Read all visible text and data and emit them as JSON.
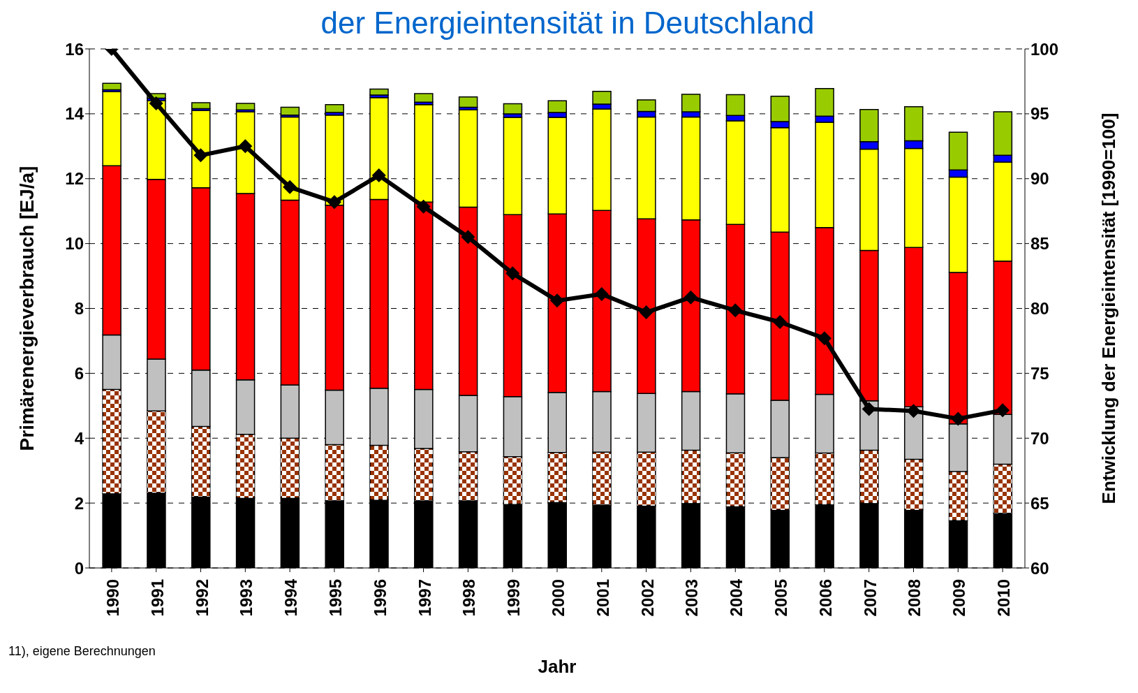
{
  "chart_data": {
    "type": "bar",
    "stacked": true,
    "title": "der Energieintensität in Deutschland",
    "xlabel": "Jahr",
    "ylabel": "Primärenergieverbrauch [EJ/a]",
    "y2label": "Entwicklung der Energieintensität [1990=100]",
    "annotations": [
      "11), eigene Berechnungen"
    ],
    "categories": [
      "1990",
      "1991",
      "1992",
      "1993",
      "1994",
      "1995",
      "1996",
      "1997",
      "1998",
      "1999",
      "2000",
      "2001",
      "2002",
      "2003",
      "2004",
      "2005",
      "2006",
      "2007",
      "2008",
      "2009",
      "2010"
    ],
    "series": [
      {
        "color": "#000000",
        "values": [
          2.3,
          2.32,
          2.2,
          2.16,
          2.16,
          2.08,
          2.1,
          2.08,
          2.08,
          1.97,
          2.03,
          1.95,
          1.92,
          2.0,
          1.9,
          1.79,
          1.96,
          2.0,
          1.79,
          1.47,
          1.69
        ]
      },
      {
        "color": "#993300",
        "values": [
          3.2,
          2.52,
          2.16,
          1.96,
          1.84,
          1.72,
          1.68,
          1.6,
          1.5,
          1.46,
          1.53,
          1.62,
          1.65,
          1.63,
          1.65,
          1.61,
          1.58,
          1.63,
          1.56,
          1.5,
          1.51
        ]
      },
      {
        "color": "#c0c0c0",
        "values": [
          1.68,
          1.6,
          1.74,
          1.68,
          1.64,
          1.68,
          1.76,
          1.82,
          1.74,
          1.85,
          1.85,
          1.87,
          1.81,
          1.81,
          1.82,
          1.77,
          1.81,
          1.52,
          1.62,
          1.47,
          1.53
        ]
      },
      {
        "color": "#ff0000",
        "values": [
          5.22,
          5.54,
          5.62,
          5.74,
          5.7,
          5.7,
          5.82,
          5.78,
          5.8,
          5.61,
          5.5,
          5.58,
          5.38,
          5.29,
          5.22,
          5.18,
          5.14,
          4.64,
          4.91,
          4.67,
          4.73
        ]
      },
      {
        "color": "#ffff00",
        "values": [
          2.28,
          2.42,
          2.38,
          2.52,
          2.56,
          2.78,
          3.14,
          3.0,
          3.0,
          3.0,
          2.98,
          3.13,
          3.14,
          3.17,
          3.19,
          3.22,
          3.25,
          3.12,
          3.05,
          2.94,
          3.05
        ]
      },
      {
        "color": "#0000ff",
        "values": [
          0.06,
          0.08,
          0.06,
          0.06,
          0.06,
          0.08,
          0.08,
          0.08,
          0.08,
          0.11,
          0.15,
          0.15,
          0.17,
          0.16,
          0.17,
          0.19,
          0.19,
          0.23,
          0.24,
          0.22,
          0.21
        ]
      },
      {
        "color": "#99cc00",
        "values": [
          0.2,
          0.14,
          0.18,
          0.2,
          0.24,
          0.24,
          0.18,
          0.26,
          0.32,
          0.31,
          0.36,
          0.39,
          0.36,
          0.54,
          0.64,
          0.78,
          0.85,
          0.99,
          1.05,
          1.16,
          1.34
        ]
      },
      {
        "type": "line",
        "axis": "y2",
        "color": "#000000",
        "marker": "diamond",
        "line_style": "solid",
        "values": [
          100,
          95.8,
          91.8,
          92.5,
          89.35,
          88.2,
          90.25,
          87.85,
          85.5,
          82.7,
          80.6,
          81.1,
          79.7,
          80.85,
          79.85,
          78.95,
          77.7,
          72.25,
          72.1,
          71.5,
          72.15
        ]
      }
    ],
    "ylim": [
      0,
      16
    ],
    "yticks": [
      0,
      2,
      4,
      6,
      8,
      10,
      12,
      14,
      16
    ],
    "y2lim": [
      60,
      100
    ],
    "y2ticks": [
      60,
      65,
      70,
      75,
      80,
      85,
      90,
      95,
      100
    ],
    "grid": "y"
  }
}
